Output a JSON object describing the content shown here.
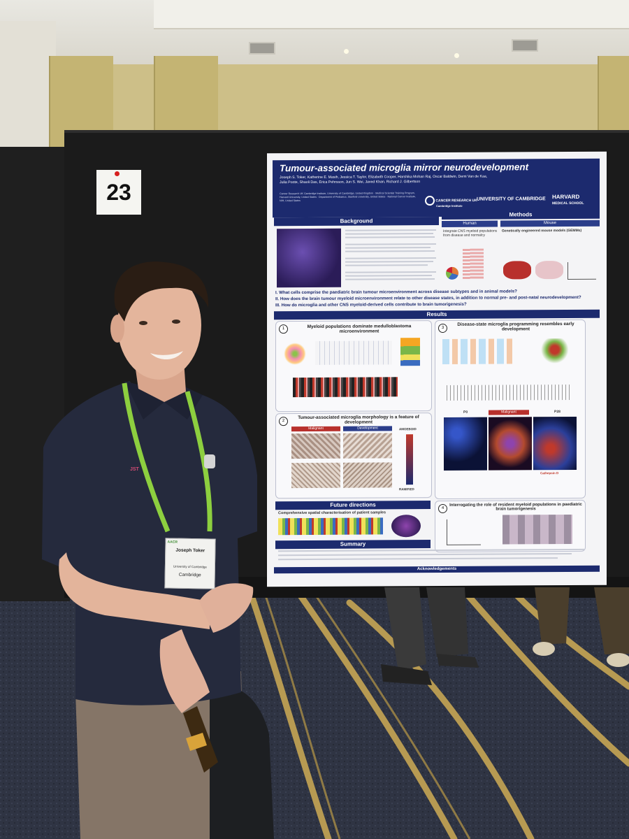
{
  "booth_number": "23",
  "poster": {
    "title": "Tumour-associated microglia mirror neurodevelopment",
    "authors": "Joseph S. Toker, Katherine E. Masih, Jessica T. Taylor, Elizabeth Cooper, Harshika Mohan Raj, Oscar Baldwin, Demi Van de Kaa, Julia Ponte, Shaoli Das, Erica Pehrsson, Jun S. Wei, Javed Khan, Richard J. Gilbertson",
    "affiliations": "Cancer Research UK Cambridge Institute, University of Cambridge, United Kingdom · Medical Scientist Training Program, Harvard University, United States · Department of Pediatrics, Stanford University, United States · National Cancer Institute, NIH, United States",
    "logos": {
      "cruk": "CANCER RESEARCH UK",
      "cruk_sub": "Cambridge Institute",
      "cambridge": "UNIVERSITY OF CAMBRIDGE",
      "harvard": "HARVARD",
      "harvard_sub": "MEDICAL SCHOOL"
    },
    "sections": {
      "background": "Background",
      "methods": "Methods",
      "human": "Human",
      "mouse": "Mouse",
      "results": "Results",
      "future": "Future directions",
      "summary": "Summary",
      "acknowledgements": "Acknowledgements"
    },
    "methods": {
      "human_text": "Integrate CNS myeloid populations from disease and normalcy",
      "mouse_title": "Genetically engineered mouse models (GEMMs)"
    },
    "questions": [
      "I.   What cells comprise the paediatric brain tumour microenvironment across disease subtypes and in animal models?",
      "II.  How does the brain tumour myeloid microenvironment relate to other disease states, in addition to normal pre- and post-natal neurodevelopment?",
      "III. How do microglia and other CNS myeloid-derived cells contribute to brain tumorigenesis?"
    ],
    "panels": {
      "p1": {
        "num": "1",
        "title": "Myeloid populations dominate medulloblastoma microenvironment"
      },
      "p2": {
        "num": "2",
        "title": "Tumour-associated microglia morphology is a feature of development",
        "malignant": "Malignant",
        "development": "Development",
        "amoeboid": "AMOEBOID",
        "ramified": "RAMIFIED",
        "dev_label": "Development"
      },
      "p3": {
        "num": "3",
        "title": "Disease-state microglia programming resembles early development",
        "malignant": "Malignant",
        "p0": "P0",
        "p28": "P28",
        "cathepsin": "Cathepsin D"
      },
      "p4": {
        "num": "4",
        "title": "Interrogating the role of resident myeloid populations in paediatric brain tumorigenesis"
      }
    },
    "future_text": "Comprehensive spatial characterisation of patient samples"
  },
  "badge": {
    "conference": "AACR",
    "name": "Joseph Toker",
    "org_line1": "University of Cambridge",
    "org_line2": "Cambridge"
  },
  "shirt_initials": "JST",
  "colors": {
    "poster_navy": "#1c2a6e",
    "lanyard": "#8dcf3f",
    "shirt": "#252a3d",
    "carpet_stripe": "#b79a52"
  }
}
